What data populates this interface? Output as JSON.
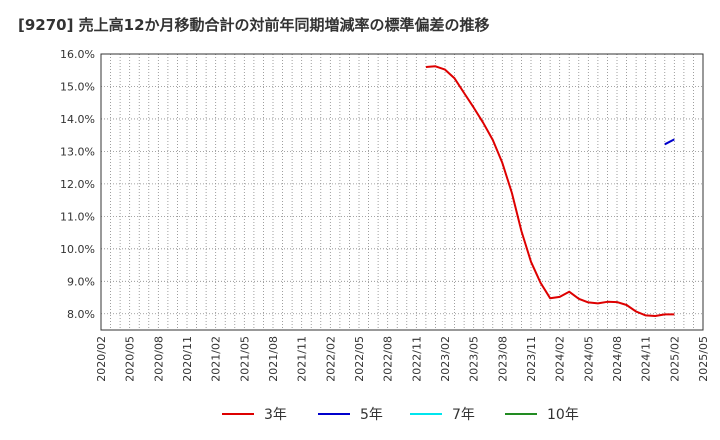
{
  "chart_data": {
    "type": "line",
    "title": "[9270]  売上高12か月移動合計の対前年同期増減率の標準偏差の推移",
    "xlabel": "",
    "ylabel": "",
    "ylim": [
      7.5,
      16.0
    ],
    "y_ticks": [
      "16.0%",
      "15.0%",
      "14.0%",
      "13.0%",
      "12.0%",
      "11.0%",
      "10.0%",
      "9.0%",
      "8.0%"
    ],
    "y_tick_values": [
      16.0,
      15.0,
      14.0,
      13.0,
      12.0,
      11.0,
      10.0,
      9.0,
      8.0
    ],
    "x_ticks": [
      "2020/02",
      "2020/05",
      "2020/08",
      "2020/11",
      "2021/02",
      "2021/05",
      "2021/08",
      "2021/11",
      "2022/02",
      "2022/05",
      "2022/08",
      "2022/11",
      "2023/02",
      "2023/05",
      "2023/08",
      "2023/11",
      "2024/02",
      "2024/05",
      "2024/08",
      "2024/11",
      "2025/02",
      "2025/05"
    ],
    "x_range": [
      "2020/02",
      "2025/05"
    ],
    "grid": true,
    "legend_position": "bottom",
    "series": [
      {
        "name": "3年",
        "color": "#dd0000",
        "x": [
          "2022/12",
          "2023/01",
          "2023/02",
          "2023/03",
          "2023/04",
          "2023/05",
          "2023/06",
          "2023/07",
          "2023/08",
          "2023/09",
          "2023/10",
          "2023/11",
          "2023/12",
          "2024/01",
          "2024/02",
          "2024/03",
          "2024/04",
          "2024/05",
          "2024/06",
          "2024/07",
          "2024/08",
          "2024/09",
          "2024/10",
          "2024/11",
          "2024/12",
          "2025/01",
          "2025/02"
        ],
        "values": [
          15.6,
          15.62,
          15.52,
          15.25,
          14.8,
          14.35,
          13.88,
          13.35,
          12.65,
          11.72,
          10.55,
          9.6,
          8.95,
          8.48,
          8.52,
          8.68,
          8.46,
          8.35,
          8.32,
          8.37,
          8.36,
          8.27,
          8.07,
          7.95,
          7.93,
          7.98,
          7.98
        ]
      },
      {
        "name": "5年",
        "color": "#0000cc",
        "x": [
          "2025/01",
          "2025/02"
        ],
        "values": [
          13.22,
          13.37
        ]
      },
      {
        "name": "7年",
        "color": "#00e5ee",
        "x": [],
        "values": []
      },
      {
        "name": "10年",
        "color": "#228b22",
        "x": [],
        "values": []
      }
    ]
  }
}
